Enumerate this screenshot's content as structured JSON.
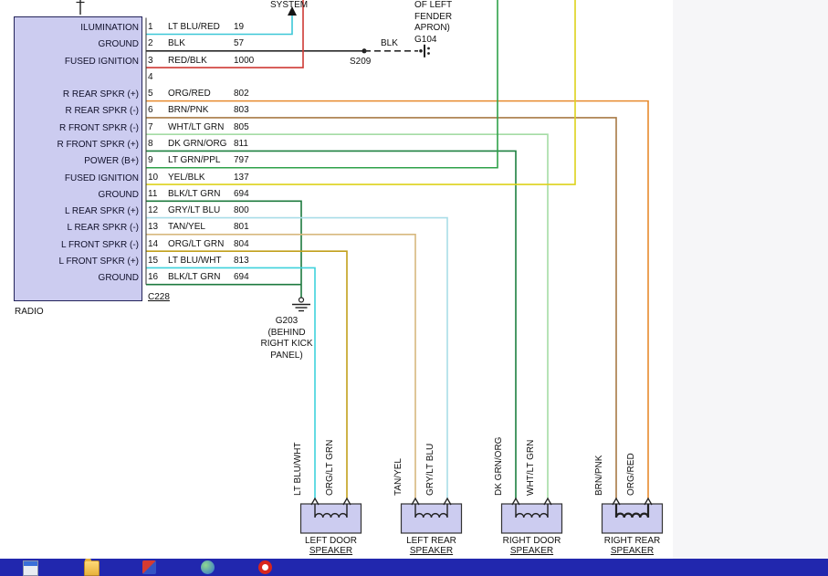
{
  "window": {
    "background": "#ffffff",
    "side_panel": "#f6f6f8"
  },
  "diagram": {
    "radio_label": "RADIO",
    "connector_label": "C228",
    "system_label": "SYSTEM",
    "g104_label_lines": [
      "OF LEFT",
      "FENDER",
      "APRON)",
      "G104"
    ],
    "splice_label": "S209",
    "splice_wire_label": "BLK",
    "ground_label_lines": [
      "G203",
      "(BEHIND",
      "RIGHT KICK",
      "PANEL)"
    ],
    "connector_fill": "#ccccf0",
    "pins": [
      {
        "num": "1",
        "label": "ILUMINATION",
        "wire": "LT BLU/RED",
        "circuit": "19",
        "color": "#3cc7d7"
      },
      {
        "num": "2",
        "label": "GROUND",
        "wire": "BLK",
        "circuit": "57",
        "color": "#2b2b2b"
      },
      {
        "num": "3",
        "label": "FUSED IGNITION",
        "wire": "RED/BLK",
        "circuit": "1000",
        "color": "#cf3a35"
      },
      {
        "num": "4",
        "label": "",
        "wire": "",
        "circuit": "",
        "color": ""
      },
      {
        "num": "5",
        "label": "R REAR SPKR (+)",
        "wire": "ORG/RED",
        "circuit": "802",
        "color": "#e78a2e"
      },
      {
        "num": "6",
        "label": "R REAR SPKR (-)",
        "wire": "BRN/PNK",
        "circuit": "803",
        "color": "#a87a45"
      },
      {
        "num": "7",
        "label": "R FRONT SPKR (-)",
        "wire": "WHT/LT GRN",
        "circuit": "805",
        "color": "#a5dca5"
      },
      {
        "num": "8",
        "label": "R FRONT SPKR (+)",
        "wire": "DK GRN/ORG",
        "circuit": "811",
        "color": "#1d8040"
      },
      {
        "num": "9",
        "label": "POWER (B+)",
        "wire": "LT GRN/PPL",
        "circuit": "797",
        "color": "#2fa149"
      },
      {
        "num": "10",
        "label": "FUSED IGNITION",
        "wire": "YEL/BLK",
        "circuit": "137",
        "color": "#ddd21c"
      },
      {
        "num": "11",
        "label": "GROUND",
        "wire": "BLK/LT GRN",
        "circuit": "694",
        "color": "#1d7a3e"
      },
      {
        "num": "12",
        "label": "L REAR SPKR (+)",
        "wire": "GRY/LT BLU",
        "circuit": "800",
        "color": "#a9dde8"
      },
      {
        "num": "13",
        "label": "L REAR SPKR (-)",
        "wire": "TAN/YEL",
        "circuit": "801",
        "color": "#d7b87e"
      },
      {
        "num": "14",
        "label": "L FRONT SPKR (-)",
        "wire": "ORG/LT GRN",
        "circuit": "804",
        "color": "#c2a01c"
      },
      {
        "num": "15",
        "label": "L FRONT SPKR (+)",
        "wire": "LT BLU/WHT",
        "circuit": "813",
        "color": "#3fd2dc"
      },
      {
        "num": "16",
        "label": "GROUND",
        "wire": "BLK/LT GRN",
        "circuit": "694",
        "color": "#1d7a3e"
      }
    ],
    "speakers": [
      {
        "lines": [
          "LEFT DOOR",
          "SPEAKER"
        ],
        "wire_labels": [
          "LT BLU/WHT",
          "ORG/LT GRN"
        ]
      },
      {
        "lines": [
          "LEFT REAR",
          "SPEAKER"
        ],
        "wire_labels": [
          "TAN/YEL",
          "GRY/LT BLU"
        ]
      },
      {
        "lines": [
          "RIGHT DOOR",
          "SPEAKER"
        ],
        "wire_labels": [
          "DK GRN/ORG",
          "WHT/LT GRN"
        ]
      },
      {
        "lines": [
          "RIGHT REAR",
          "SPEAKER"
        ],
        "wire_labels": [
          "BRN/PNK",
          "ORG/RED"
        ]
      }
    ]
  },
  "taskbar": {
    "background": "#2127ae",
    "icons": [
      "window-icon",
      "folder-icon",
      "paint-icon",
      "globe-icon",
      "opera-icon"
    ]
  }
}
